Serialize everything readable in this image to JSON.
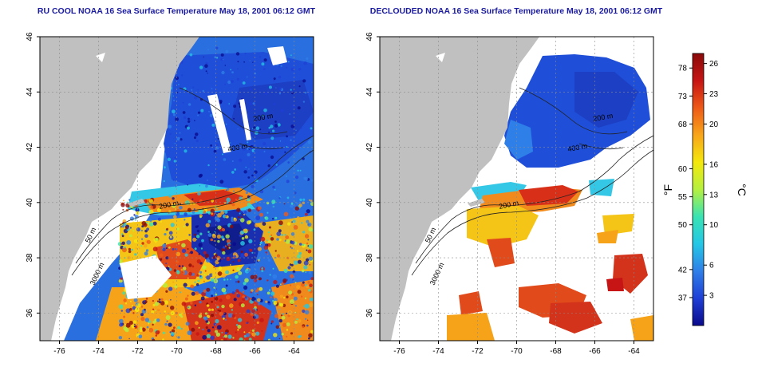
{
  "panels": [
    {
      "id": "raw",
      "title": "RU COOL NOAA 16 Sea Surface Temperature May 18, 2001 06:12 GMT",
      "cloud_masked": false
    },
    {
      "id": "declouded",
      "title": "DECLOUDED NOAA 16 Sea Surface Temperature May 18, 2001 06:12 GMT",
      "cloud_masked": true
    }
  ],
  "map": {
    "lon_range": [
      -77,
      -63
    ],
    "lat_range": [
      35,
      46
    ],
    "lon_ticks": [
      "-76",
      "-74",
      "-72",
      "-70",
      "-68",
      "-66",
      "-64"
    ],
    "lat_ticks": [
      "36",
      "38",
      "40",
      "42",
      "44",
      "46"
    ],
    "grid": true,
    "land_color": "#c0c0c0",
    "ocean_nodata_color": "#ffffff",
    "contours": [
      {
        "label": "50 m"
      },
      {
        "label": "200 m"
      },
      {
        "label": "3000 m"
      },
      {
        "label": "400 m"
      },
      {
        "label": "200 m"
      }
    ]
  },
  "colorbar": {
    "fahrenheit_label": "°F",
    "celsius_label": "°C",
    "fahrenheit_ticks": [
      "78",
      "73",
      "68",
      "60",
      "55",
      "50",
      "42",
      "37"
    ],
    "fahrenheit_values": [
      78,
      73,
      68,
      60,
      55,
      50,
      42,
      37
    ],
    "celsius_ticks": [
      "26",
      "23",
      "20",
      "16",
      "13",
      "10",
      "6",
      "3"
    ],
    "celsius_values": [
      26,
      23,
      20,
      16,
      13,
      10,
      6,
      3
    ],
    "range_c": [
      0,
      27
    ],
    "colors": [
      "#0a0a8c",
      "#1f3fd6",
      "#2f7fe8",
      "#24c7e6",
      "#39e3b3",
      "#b5f040",
      "#f4e80c",
      "#f8a51a",
      "#ee5a18",
      "#c71414",
      "#8a0a0a"
    ]
  }
}
